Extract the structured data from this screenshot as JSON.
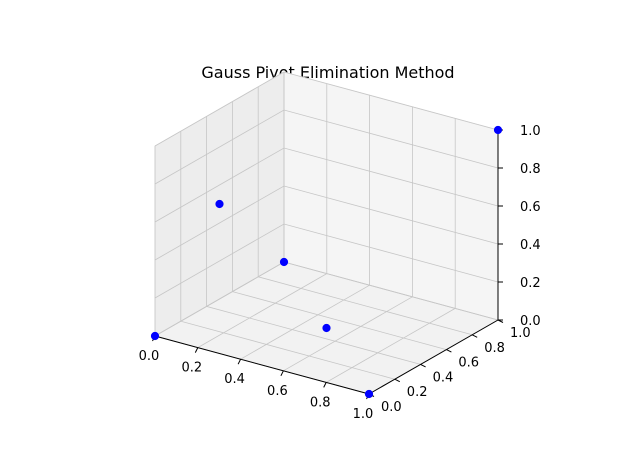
{
  "chart_data": {
    "type": "scatter",
    "projection": "3d",
    "title": "Gauss Pivot Elimination Method",
    "xlabel": "",
    "ylabel": "",
    "zlabel": "",
    "xlim": [
      0,
      1
    ],
    "ylim": [
      0,
      1
    ],
    "zlim": [
      0,
      1
    ],
    "x_ticks": [
      "0.0",
      "0.2",
      "0.4",
      "0.6",
      "0.8",
      "1.0"
    ],
    "y_ticks": [
      "0.0",
      "0.2",
      "0.4",
      "0.6",
      "0.8",
      "1.0"
    ],
    "z_ticks": [
      "0.0",
      "0.2",
      "0.4",
      "0.6",
      "0.8",
      "1.0"
    ],
    "grid": true,
    "marker_color": "#0000ff",
    "points": [
      {
        "x": 0.0,
        "y": 0.0,
        "z": 0.0
      },
      {
        "x": 1.0,
        "y": 0.0,
        "z": 0.0
      },
      {
        "x": 0.0,
        "y": 1.0,
        "z": 0.0
      },
      {
        "x": 1.0,
        "y": 1.0,
        "z": 1.0
      },
      {
        "x": 0.5,
        "y": 0.5,
        "z": 0.0
      },
      {
        "x": 0.0,
        "y": 0.5,
        "z": 0.5
      }
    ]
  }
}
